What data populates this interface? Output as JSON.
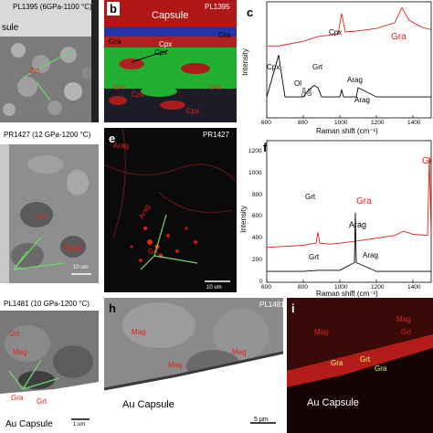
{
  "panel_a": {
    "title": "PL1395 (6GPa-1100 °C)",
    "capsule": "sule",
    "grt": "Grt",
    "scale": ""
  },
  "panel_b": {
    "letter": "b",
    "title": "PL1395",
    "capsule": "Capsule",
    "gra1": "Gra",
    "gra2": "Gra",
    "cpx1": "Cpx",
    "cpx2": "Cpx",
    "cpx3": "Cpx",
    "cpx4": "Cpx",
    "gra3": "Gra",
    "gra4": "Gra"
  },
  "panel_c": {
    "letter": "c",
    "xlabel": "Raman shift (cm⁻¹)",
    "ylabel": "Intensity",
    "xticks": [
      "600",
      "800",
      "1000",
      "1200",
      "1400"
    ],
    "labels": {
      "cpx_left": "Cpx",
      "cpx_top": "Cpx",
      "grt": "Grt",
      "arag": "Arag",
      "gra": "Gra",
      "ol": "Ol",
      "cpx_small": "Cpx",
      "grt_small": "Grt",
      "arag_small": "Arag"
    }
  },
  "panel_d": {
    "title": "PR1427 (12 GPa-1200 °C)",
    "grt": "Grt",
    "rwd": "Rwd",
    "scale": "10 um"
  },
  "panel_e": {
    "letter": "e",
    "title": "PR1427",
    "arag": "Arag",
    "arag2": "Arag",
    "grt": "Grt",
    "scale": "10 um"
  },
  "panel_f": {
    "letter": "f",
    "xlabel": "Raman shift (cm⁻¹)",
    "ylabel": "Intensity",
    "xticks": [
      "600",
      "800",
      "1000",
      "1200",
      "1400"
    ],
    "yticks": [
      "0",
      "200",
      "400",
      "600",
      "800",
      "1000",
      "1200"
    ],
    "labels": {
      "grt": "Grt",
      "gra": "Gra",
      "gra_right": "Gr",
      "arag": "Arag",
      "grt2": "Grt",
      "arag2": "Arag"
    }
  },
  "panel_g": {
    "title": "PL1481 (10 GPa-1200 °C)",
    "grt": "Grt",
    "mag": "Mag",
    "gra": "Gra",
    "grt2": "Grt",
    "capsule": "Au Capsule",
    "scale": "1 um"
  },
  "panel_h": {
    "letter": "h",
    "title": "PL1481",
    "mag1": "Mag",
    "mag2": "Mag",
    "mag3": "Mag",
    "capsule": "Au Capsule",
    "scale": "5 μm"
  },
  "panel_i": {
    "letter": "i",
    "mag1": "Mag",
    "mag2": "Mag",
    "grt1": "Grt",
    "gra1": "Gra",
    "grt2": "Grt",
    "gra2": "Gra",
    "capsule": "Au Capsule"
  },
  "chart_data": [
    {
      "type": "line",
      "panel": "c",
      "xlabel": "Raman shift (cm⁻¹)",
      "ylabel": "Intensity",
      "xlim": [
        600,
        1500
      ],
      "series": [
        {
          "color": "#e0231c",
          "x": [
            600,
            665,
            700,
            800,
            880,
            930,
            990,
            1010,
            1030,
            1100,
            1200,
            1300,
            1340,
            1380,
            1450,
            1500
          ],
          "values": [
            0.62,
            0.62,
            0.63,
            0.66,
            0.7,
            0.71,
            0.72,
            0.9,
            0.74,
            0.75,
            0.77,
            0.82,
            0.95,
            0.84,
            0.78,
            0.76
          ]
        },
        {
          "color": "#000000",
          "x": [
            600,
            665,
            700,
            800,
            830,
            860,
            880,
            900,
            1000,
            1010,
            1020,
            1090,
            1100,
            1200,
            1400,
            1500
          ],
          "values": [
            0.18,
            0.54,
            0.18,
            0.18,
            0.24,
            0.28,
            0.26,
            0.18,
            0.18,
            0.24,
            0.18,
            0.18,
            0.26,
            0.18,
            0.18,
            0.18
          ]
        }
      ]
    },
    {
      "type": "line",
      "panel": "f",
      "xlabel": "Raman shift (cm⁻¹)",
      "ylabel": "Intensity",
      "xlim": [
        600,
        1500
      ],
      "ylim": [
        0,
        1300
      ],
      "series": [
        {
          "color": "#e0231c",
          "x": [
            600,
            700,
            800,
            870,
            880,
            890,
            950,
            1100,
            1300,
            1350,
            1400,
            1480,
            1490,
            1500
          ],
          "values": [
            320,
            330,
            340,
            360,
            460,
            360,
            350,
            380,
            430,
            470,
            440,
            430,
            1150,
            430
          ]
        },
        {
          "color": "#000000",
          "x": [
            600,
            800,
            880,
            1000,
            1080,
            1085,
            1090,
            1200,
            1400,
            1500
          ],
          "values": [
            100,
            100,
            110,
            110,
            180,
            640,
            180,
            100,
            100,
            100
          ]
        }
      ]
    }
  ]
}
